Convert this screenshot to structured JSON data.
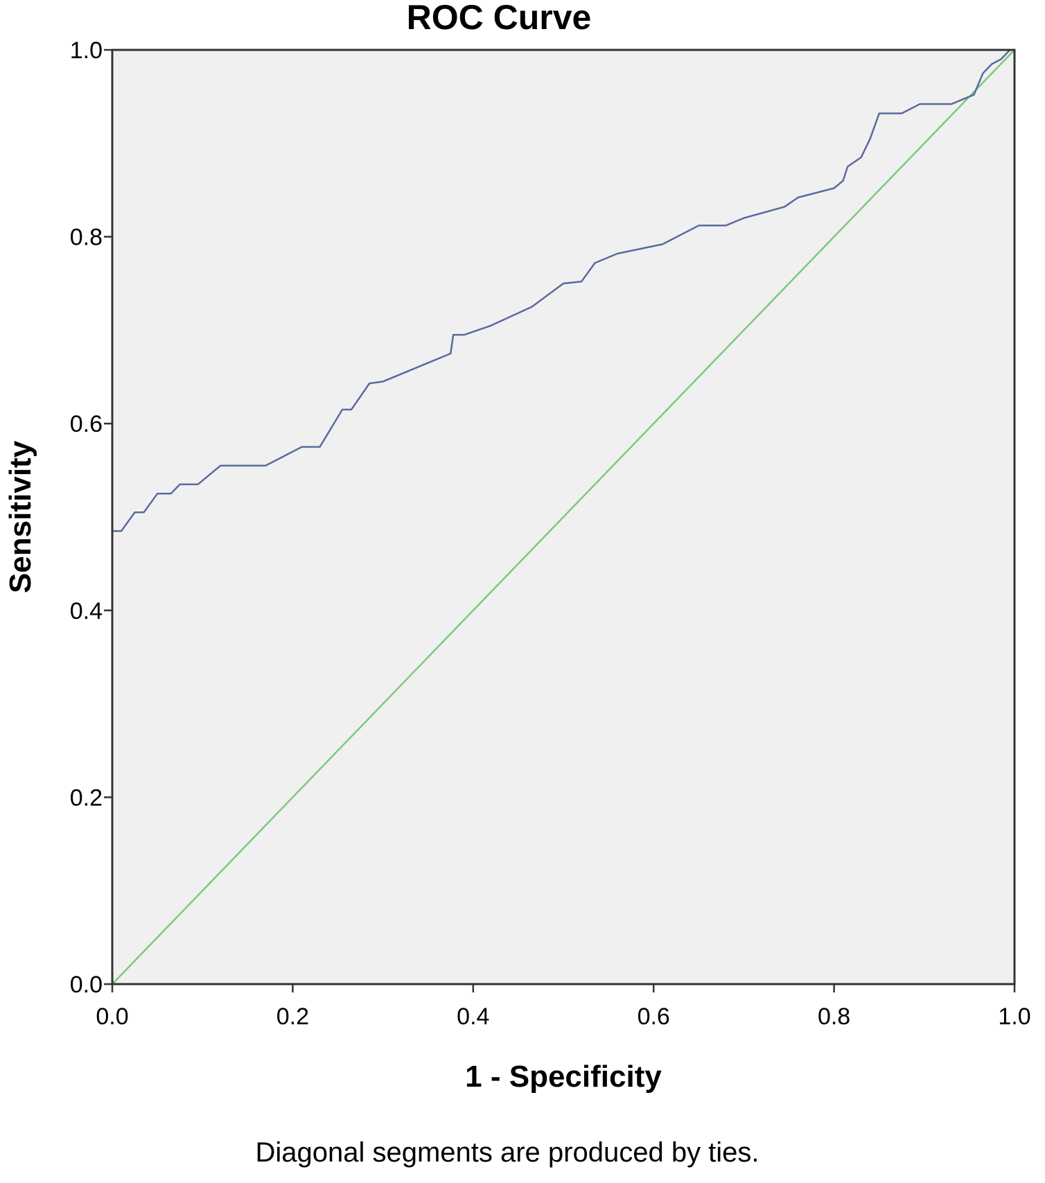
{
  "chart_data": {
    "type": "line",
    "title": "ROC Curve",
    "xlabel": "1 - Specificity",
    "ylabel": "Sensitivity",
    "xlim": [
      0,
      1
    ],
    "ylim": [
      0,
      1
    ],
    "grid": false,
    "x_ticks": [
      "0.0",
      "0.2",
      "0.4",
      "0.6",
      "0.8",
      "1.0"
    ],
    "y_ticks": [
      "0.0",
      "0.2",
      "0.4",
      "0.6",
      "0.8",
      "1.0"
    ],
    "footnote": "Diagonal segments are produced by ties.",
    "colors": {
      "plot_background": "#f0f0f0",
      "roc_curve": "#5a6a9e",
      "reference_line": "#7cc97c"
    },
    "series": [
      {
        "points": [
          [
            0.0,
            0.485
          ],
          [
            0.01,
            0.485
          ],
          [
            0.025,
            0.505
          ],
          [
            0.035,
            0.505
          ],
          [
            0.05,
            0.525
          ],
          [
            0.065,
            0.525
          ],
          [
            0.075,
            0.535
          ],
          [
            0.095,
            0.535
          ],
          [
            0.12,
            0.555
          ],
          [
            0.17,
            0.555
          ],
          [
            0.19,
            0.565
          ],
          [
            0.21,
            0.575
          ],
          [
            0.23,
            0.575
          ],
          [
            0.255,
            0.615
          ],
          [
            0.265,
            0.615
          ],
          [
            0.285,
            0.643
          ],
          [
            0.3,
            0.645
          ],
          [
            0.375,
            0.675
          ],
          [
            0.378,
            0.695
          ],
          [
            0.39,
            0.695
          ],
          [
            0.42,
            0.705
          ],
          [
            0.465,
            0.725
          ],
          [
            0.5,
            0.75
          ],
          [
            0.52,
            0.752
          ],
          [
            0.535,
            0.772
          ],
          [
            0.56,
            0.782
          ],
          [
            0.58,
            0.786
          ],
          [
            0.61,
            0.792
          ],
          [
            0.65,
            0.812
          ],
          [
            0.68,
            0.812
          ],
          [
            0.7,
            0.82
          ],
          [
            0.745,
            0.832
          ],
          [
            0.76,
            0.842
          ],
          [
            0.8,
            0.852
          ],
          [
            0.81,
            0.86
          ],
          [
            0.815,
            0.875
          ],
          [
            0.83,
            0.885
          ],
          [
            0.84,
            0.905
          ],
          [
            0.85,
            0.932
          ],
          [
            0.875,
            0.932
          ],
          [
            0.895,
            0.942
          ],
          [
            0.93,
            0.942
          ],
          [
            0.955,
            0.952
          ],
          [
            0.965,
            0.975
          ],
          [
            0.975,
            0.985
          ],
          [
            0.985,
            0.99
          ],
          [
            0.995,
            1.0
          ],
          [
            1.0,
            1.0
          ]
        ]
      },
      {
        "points": [
          [
            0,
            0
          ],
          [
            1,
            1
          ]
        ]
      }
    ]
  }
}
